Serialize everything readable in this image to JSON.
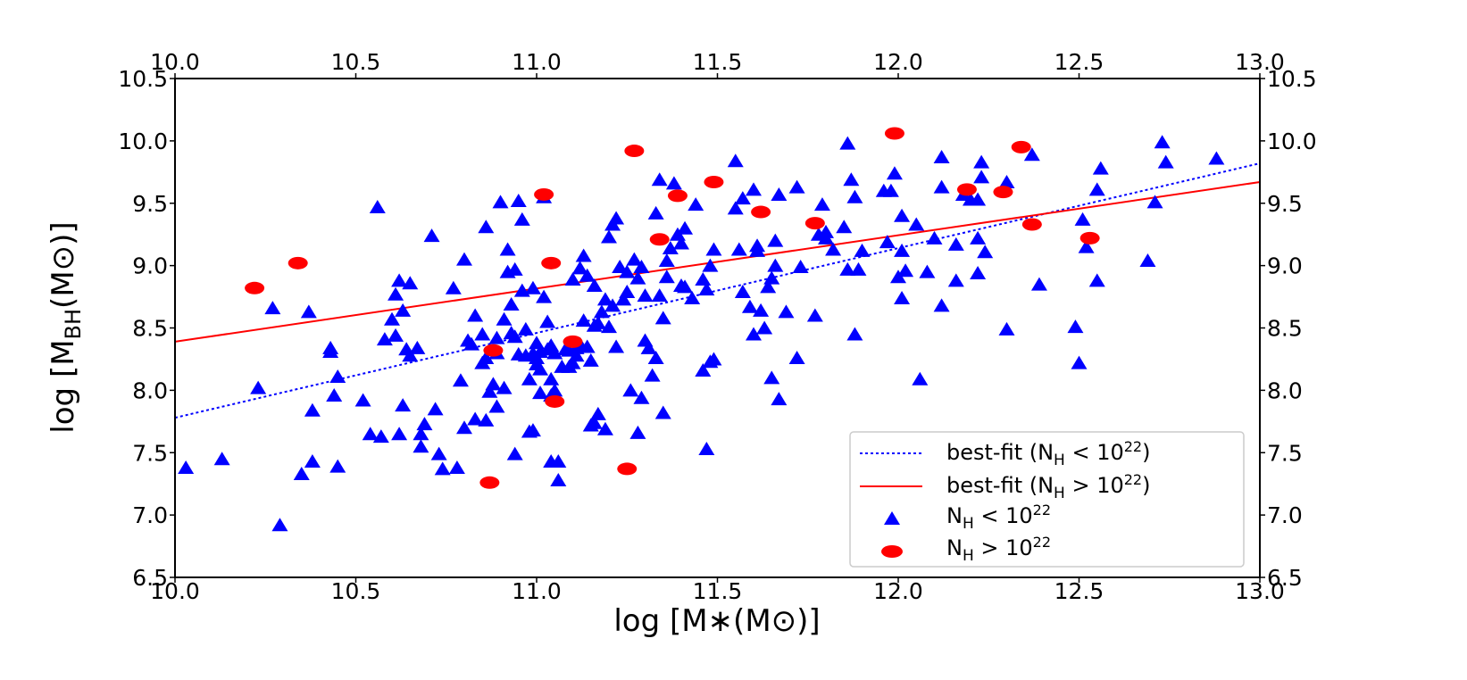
{
  "chart_data": {
    "type": "scatter",
    "xlabel": "log [M∗(M⊙)]",
    "ylabel": "log [M_BH(M⊙)]",
    "xlim": [
      10.0,
      13.0
    ],
    "ylim": [
      6.5,
      10.5
    ],
    "x_ticks": [
      "10.0",
      "10.5",
      "11.0",
      "11.5",
      "12.0",
      "12.5",
      "13.0"
    ],
    "y_ticks": [
      "6.5",
      "7.0",
      "7.5",
      "8.0",
      "8.5",
      "9.0",
      "9.5",
      "10.0",
      "10.5"
    ],
    "legend_position": "lower-right",
    "colors": {
      "low": "#0000ff",
      "high": "#ff0000",
      "frame": "#000000"
    },
    "legend": {
      "fit_low": {
        "prefix": "best-fit (N",
        "sub": "H",
        "rel": " < 10",
        "sup": "22",
        "suffix": ")"
      },
      "fit_high": {
        "prefix": "best-fit (N",
        "sub": "H",
        "rel": " > 10",
        "sup": "22",
        "suffix": ")"
      },
      "pts_low": {
        "prefix": "N",
        "sub": "H",
        "rel": " < 10",
        "sup": "22"
      },
      "pts_high": {
        "prefix": "N",
        "sub": "H",
        "rel": " > 10",
        "sup": "22"
      }
    },
    "fits": [
      {
        "name": "best-fit (NH < 10^22)",
        "style": "dotted",
        "color": "#0000ff",
        "x": [
          10.0,
          13.0
        ],
        "y": [
          7.78,
          9.82
        ]
      },
      {
        "name": "best-fit (NH > 10^22)",
        "style": "solid",
        "color": "#ff0000",
        "x": [
          10.0,
          13.0
        ],
        "y": [
          8.39,
          9.67
        ]
      }
    ],
    "series": [
      {
        "name": "NH < 10^22",
        "marker": "triangle",
        "color": "#0000ff",
        "points": [
          [
            10.03,
            7.38
          ],
          [
            10.13,
            7.45
          ],
          [
            10.23,
            8.02
          ],
          [
            10.27,
            8.66
          ],
          [
            10.29,
            6.92
          ],
          [
            10.35,
            7.33
          ],
          [
            10.37,
            8.63
          ],
          [
            10.38,
            7.43
          ],
          [
            10.38,
            7.84
          ],
          [
            10.43,
            8.34
          ],
          [
            10.43,
            8.31
          ],
          [
            10.44,
            7.96
          ],
          [
            10.45,
            8.11
          ],
          [
            10.45,
            7.39
          ],
          [
            10.52,
            7.92
          ],
          [
            10.54,
            7.65
          ],
          [
            10.56,
            9.47
          ],
          [
            10.57,
            7.63
          ],
          [
            10.58,
            8.41
          ],
          [
            10.6,
            8.57
          ],
          [
            10.61,
            8.77
          ],
          [
            10.61,
            8.44
          ],
          [
            10.62,
            7.65
          ],
          [
            10.62,
            8.88
          ],
          [
            10.63,
            8.64
          ],
          [
            10.63,
            7.88
          ],
          [
            10.64,
            8.33
          ],
          [
            10.65,
            8.28
          ],
          [
            10.65,
            8.86
          ],
          [
            10.67,
            8.34
          ],
          [
            10.68,
            7.65
          ],
          [
            10.68,
            7.55
          ],
          [
            10.69,
            7.73
          ],
          [
            10.71,
            9.24
          ],
          [
            10.72,
            7.85
          ],
          [
            10.73,
            7.49
          ],
          [
            10.74,
            7.37
          ],
          [
            10.77,
            8.82
          ],
          [
            10.78,
            7.38
          ],
          [
            10.79,
            8.08
          ],
          [
            10.8,
            9.05
          ],
          [
            10.8,
            7.7
          ],
          [
            10.81,
            8.4
          ],
          [
            10.82,
            8.37
          ],
          [
            10.83,
            7.77
          ],
          [
            10.83,
            8.6
          ],
          [
            10.85,
            8.45
          ],
          [
            10.85,
            8.22
          ],
          [
            10.86,
            8.26
          ],
          [
            10.86,
            7.76
          ],
          [
            10.86,
            9.31
          ],
          [
            10.87,
            7.99
          ],
          [
            10.88,
            8.05
          ],
          [
            10.89,
            7.87
          ],
          [
            10.89,
            8.42
          ],
          [
            10.89,
            8.3
          ],
          [
            10.9,
            9.51
          ],
          [
            10.91,
            8.02
          ],
          [
            10.91,
            8.57
          ],
          [
            10.92,
            9.13
          ],
          [
            10.92,
            8.95
          ],
          [
            10.93,
            8.46
          ],
          [
            10.93,
            8.69
          ],
          [
            10.94,
            7.49
          ],
          [
            10.94,
            8.97
          ],
          [
            10.94,
            8.43
          ],
          [
            10.95,
            9.52
          ],
          [
            10.95,
            8.29
          ],
          [
            10.96,
            9.37
          ],
          [
            10.96,
            8.8
          ],
          [
            10.97,
            8.28
          ],
          [
            10.97,
            8.49
          ],
          [
            10.98,
            7.67
          ],
          [
            10.98,
            8.09
          ],
          [
            10.99,
            7.68
          ],
          [
            10.99,
            8.82
          ],
          [
            10.99,
            8.3
          ],
          [
            11.0,
            8.26
          ],
          [
            11.0,
            8.38
          ],
          [
            11.0,
            8.21
          ],
          [
            11.01,
            8.31
          ],
          [
            11.01,
            8.17
          ],
          [
            11.01,
            7.98
          ],
          [
            11.02,
            9.55
          ],
          [
            11.02,
            8.75
          ],
          [
            11.03,
            8.33
          ],
          [
            11.03,
            8.55
          ],
          [
            11.04,
            7.43
          ],
          [
            11.04,
            8.09
          ],
          [
            11.04,
            7.96
          ],
          [
            11.04,
            8.36
          ],
          [
            11.05,
            8.3
          ],
          [
            11.05,
            8.0
          ],
          [
            11.06,
            7.28
          ],
          [
            11.06,
            7.43
          ],
          [
            11.07,
            8.19
          ],
          [
            11.08,
            8.33
          ],
          [
            11.09,
            8.32
          ],
          [
            11.09,
            8.19
          ],
          [
            11.1,
            8.89
          ],
          [
            11.1,
            8.22
          ],
          [
            11.11,
            8.28
          ],
          [
            11.11,
            8.34
          ],
          [
            11.12,
            8.98
          ],
          [
            11.12,
            8.37
          ],
          [
            11.13,
            9.08
          ],
          [
            11.13,
            8.56
          ],
          [
            11.14,
            8.35
          ],
          [
            11.14,
            8.92
          ],
          [
            11.15,
            8.24
          ],
          [
            11.15,
            7.72
          ],
          [
            11.16,
            8.52
          ],
          [
            11.16,
            7.74
          ],
          [
            11.16,
            8.84
          ],
          [
            11.17,
            8.54
          ],
          [
            11.17,
            7.81
          ],
          [
            11.18,
            8.63
          ],
          [
            11.19,
            7.69
          ],
          [
            11.19,
            8.73
          ],
          [
            11.2,
            9.23
          ],
          [
            11.2,
            8.51
          ],
          [
            11.21,
            9.33
          ],
          [
            11.21,
            8.68
          ],
          [
            11.22,
            9.38
          ],
          [
            11.22,
            8.35
          ],
          [
            11.23,
            8.99
          ],
          [
            11.24,
            8.73
          ],
          [
            11.25,
            8.95
          ],
          [
            11.25,
            8.79
          ],
          [
            11.26,
            8.0
          ],
          [
            11.27,
            9.05
          ],
          [
            11.28,
            8.9
          ],
          [
            11.28,
            7.66
          ],
          [
            11.29,
            8.99
          ],
          [
            11.29,
            7.94
          ],
          [
            11.3,
            8.76
          ],
          [
            11.3,
            8.4
          ],
          [
            11.31,
            8.34
          ],
          [
            11.32,
            8.12
          ],
          [
            11.33,
            9.42
          ],
          [
            11.33,
            8.26
          ],
          [
            11.34,
            9.69
          ],
          [
            11.34,
            8.76
          ],
          [
            11.35,
            7.82
          ],
          [
            11.35,
            8.58
          ],
          [
            11.36,
            9.04
          ],
          [
            11.36,
            8.91
          ],
          [
            11.37,
            9.14
          ],
          [
            11.38,
            9.66
          ],
          [
            11.39,
            9.25
          ],
          [
            11.4,
            9.18
          ],
          [
            11.4,
            8.84
          ],
          [
            11.41,
            9.3
          ],
          [
            11.41,
            8.83
          ],
          [
            11.43,
            8.74
          ],
          [
            11.44,
            9.49
          ],
          [
            11.46,
            8.89
          ],
          [
            11.46,
            8.16
          ],
          [
            11.47,
            7.53
          ],
          [
            11.47,
            8.81
          ],
          [
            11.48,
            9.0
          ],
          [
            11.48,
            8.23
          ],
          [
            11.49,
            9.13
          ],
          [
            11.49,
            8.25
          ],
          [
            11.55,
            9.84
          ],
          [
            11.55,
            9.46
          ],
          [
            11.56,
            9.13
          ],
          [
            11.57,
            8.79
          ],
          [
            11.57,
            9.54
          ],
          [
            11.59,
            8.67
          ],
          [
            11.6,
            9.61
          ],
          [
            11.6,
            8.45
          ],
          [
            11.61,
            9.12
          ],
          [
            11.61,
            9.16
          ],
          [
            11.62,
            8.64
          ],
          [
            11.63,
            8.5
          ],
          [
            11.64,
            8.83
          ],
          [
            11.65,
            8.9
          ],
          [
            11.65,
            8.1
          ],
          [
            11.66,
            9.2
          ],
          [
            11.66,
            9.0
          ],
          [
            11.67,
            9.57
          ],
          [
            11.67,
            7.93
          ],
          [
            11.69,
            8.63
          ],
          [
            11.72,
            9.63
          ],
          [
            11.72,
            8.26
          ],
          [
            11.73,
            8.99
          ],
          [
            11.77,
            8.6
          ],
          [
            11.78,
            9.25
          ],
          [
            11.79,
            9.49
          ],
          [
            11.8,
            9.27
          ],
          [
            11.8,
            9.22
          ],
          [
            11.82,
            9.13
          ],
          [
            11.85,
            9.31
          ],
          [
            11.86,
            8.97
          ],
          [
            11.86,
            9.98
          ],
          [
            11.87,
            9.69
          ],
          [
            11.88,
            9.55
          ],
          [
            11.88,
            8.45
          ],
          [
            11.89,
            8.97
          ],
          [
            11.9,
            9.12
          ],
          [
            11.96,
            9.6
          ],
          [
            11.97,
            9.19
          ],
          [
            11.98,
            9.6
          ],
          [
            11.99,
            9.74
          ],
          [
            12.0,
            8.91
          ],
          [
            12.01,
            9.4
          ],
          [
            12.01,
            9.12
          ],
          [
            12.01,
            8.74
          ],
          [
            12.02,
            8.96
          ],
          [
            12.05,
            9.33
          ],
          [
            12.06,
            8.09
          ],
          [
            12.08,
            8.95
          ],
          [
            12.1,
            9.22
          ],
          [
            12.12,
            9.87
          ],
          [
            12.12,
            9.63
          ],
          [
            12.12,
            8.68
          ],
          [
            12.16,
            9.17
          ],
          [
            12.16,
            8.88
          ],
          [
            12.18,
            9.57
          ],
          [
            12.2,
            9.53
          ],
          [
            12.22,
            9.22
          ],
          [
            12.22,
            8.94
          ],
          [
            12.22,
            9.53
          ],
          [
            12.23,
            9.71
          ],
          [
            12.23,
            9.83
          ],
          [
            12.24,
            9.11
          ],
          [
            12.3,
            9.67
          ],
          [
            12.3,
            8.49
          ],
          [
            12.37,
            9.89
          ],
          [
            12.39,
            8.85
          ],
          [
            12.49,
            8.51
          ],
          [
            12.5,
            8.22
          ],
          [
            12.51,
            9.37
          ],
          [
            12.52,
            9.15
          ],
          [
            12.55,
            9.61
          ],
          [
            12.55,
            8.88
          ],
          [
            12.56,
            9.78
          ],
          [
            12.69,
            9.04
          ],
          [
            12.71,
            9.51
          ],
          [
            12.73,
            9.99
          ],
          [
            12.74,
            9.83
          ],
          [
            12.88,
            9.86
          ]
        ]
      },
      {
        "name": "NH > 10^22",
        "marker": "ellipse",
        "color": "#ff0000",
        "points": [
          [
            10.22,
            8.82
          ],
          [
            10.34,
            9.02
          ],
          [
            10.87,
            7.26
          ],
          [
            10.88,
            8.32
          ],
          [
            11.02,
            9.57
          ],
          [
            11.04,
            9.02
          ],
          [
            11.05,
            7.91
          ],
          [
            11.1,
            8.39
          ],
          [
            11.25,
            7.37
          ],
          [
            11.27,
            9.92
          ],
          [
            11.34,
            9.21
          ],
          [
            11.39,
            9.56
          ],
          [
            11.49,
            9.67
          ],
          [
            11.62,
            9.43
          ],
          [
            11.77,
            9.34
          ],
          [
            11.99,
            10.06
          ],
          [
            12.19,
            9.61
          ],
          [
            12.29,
            9.59
          ],
          [
            12.34,
            9.95
          ],
          [
            12.37,
            9.33
          ],
          [
            12.53,
            9.22
          ]
        ]
      }
    ]
  }
}
